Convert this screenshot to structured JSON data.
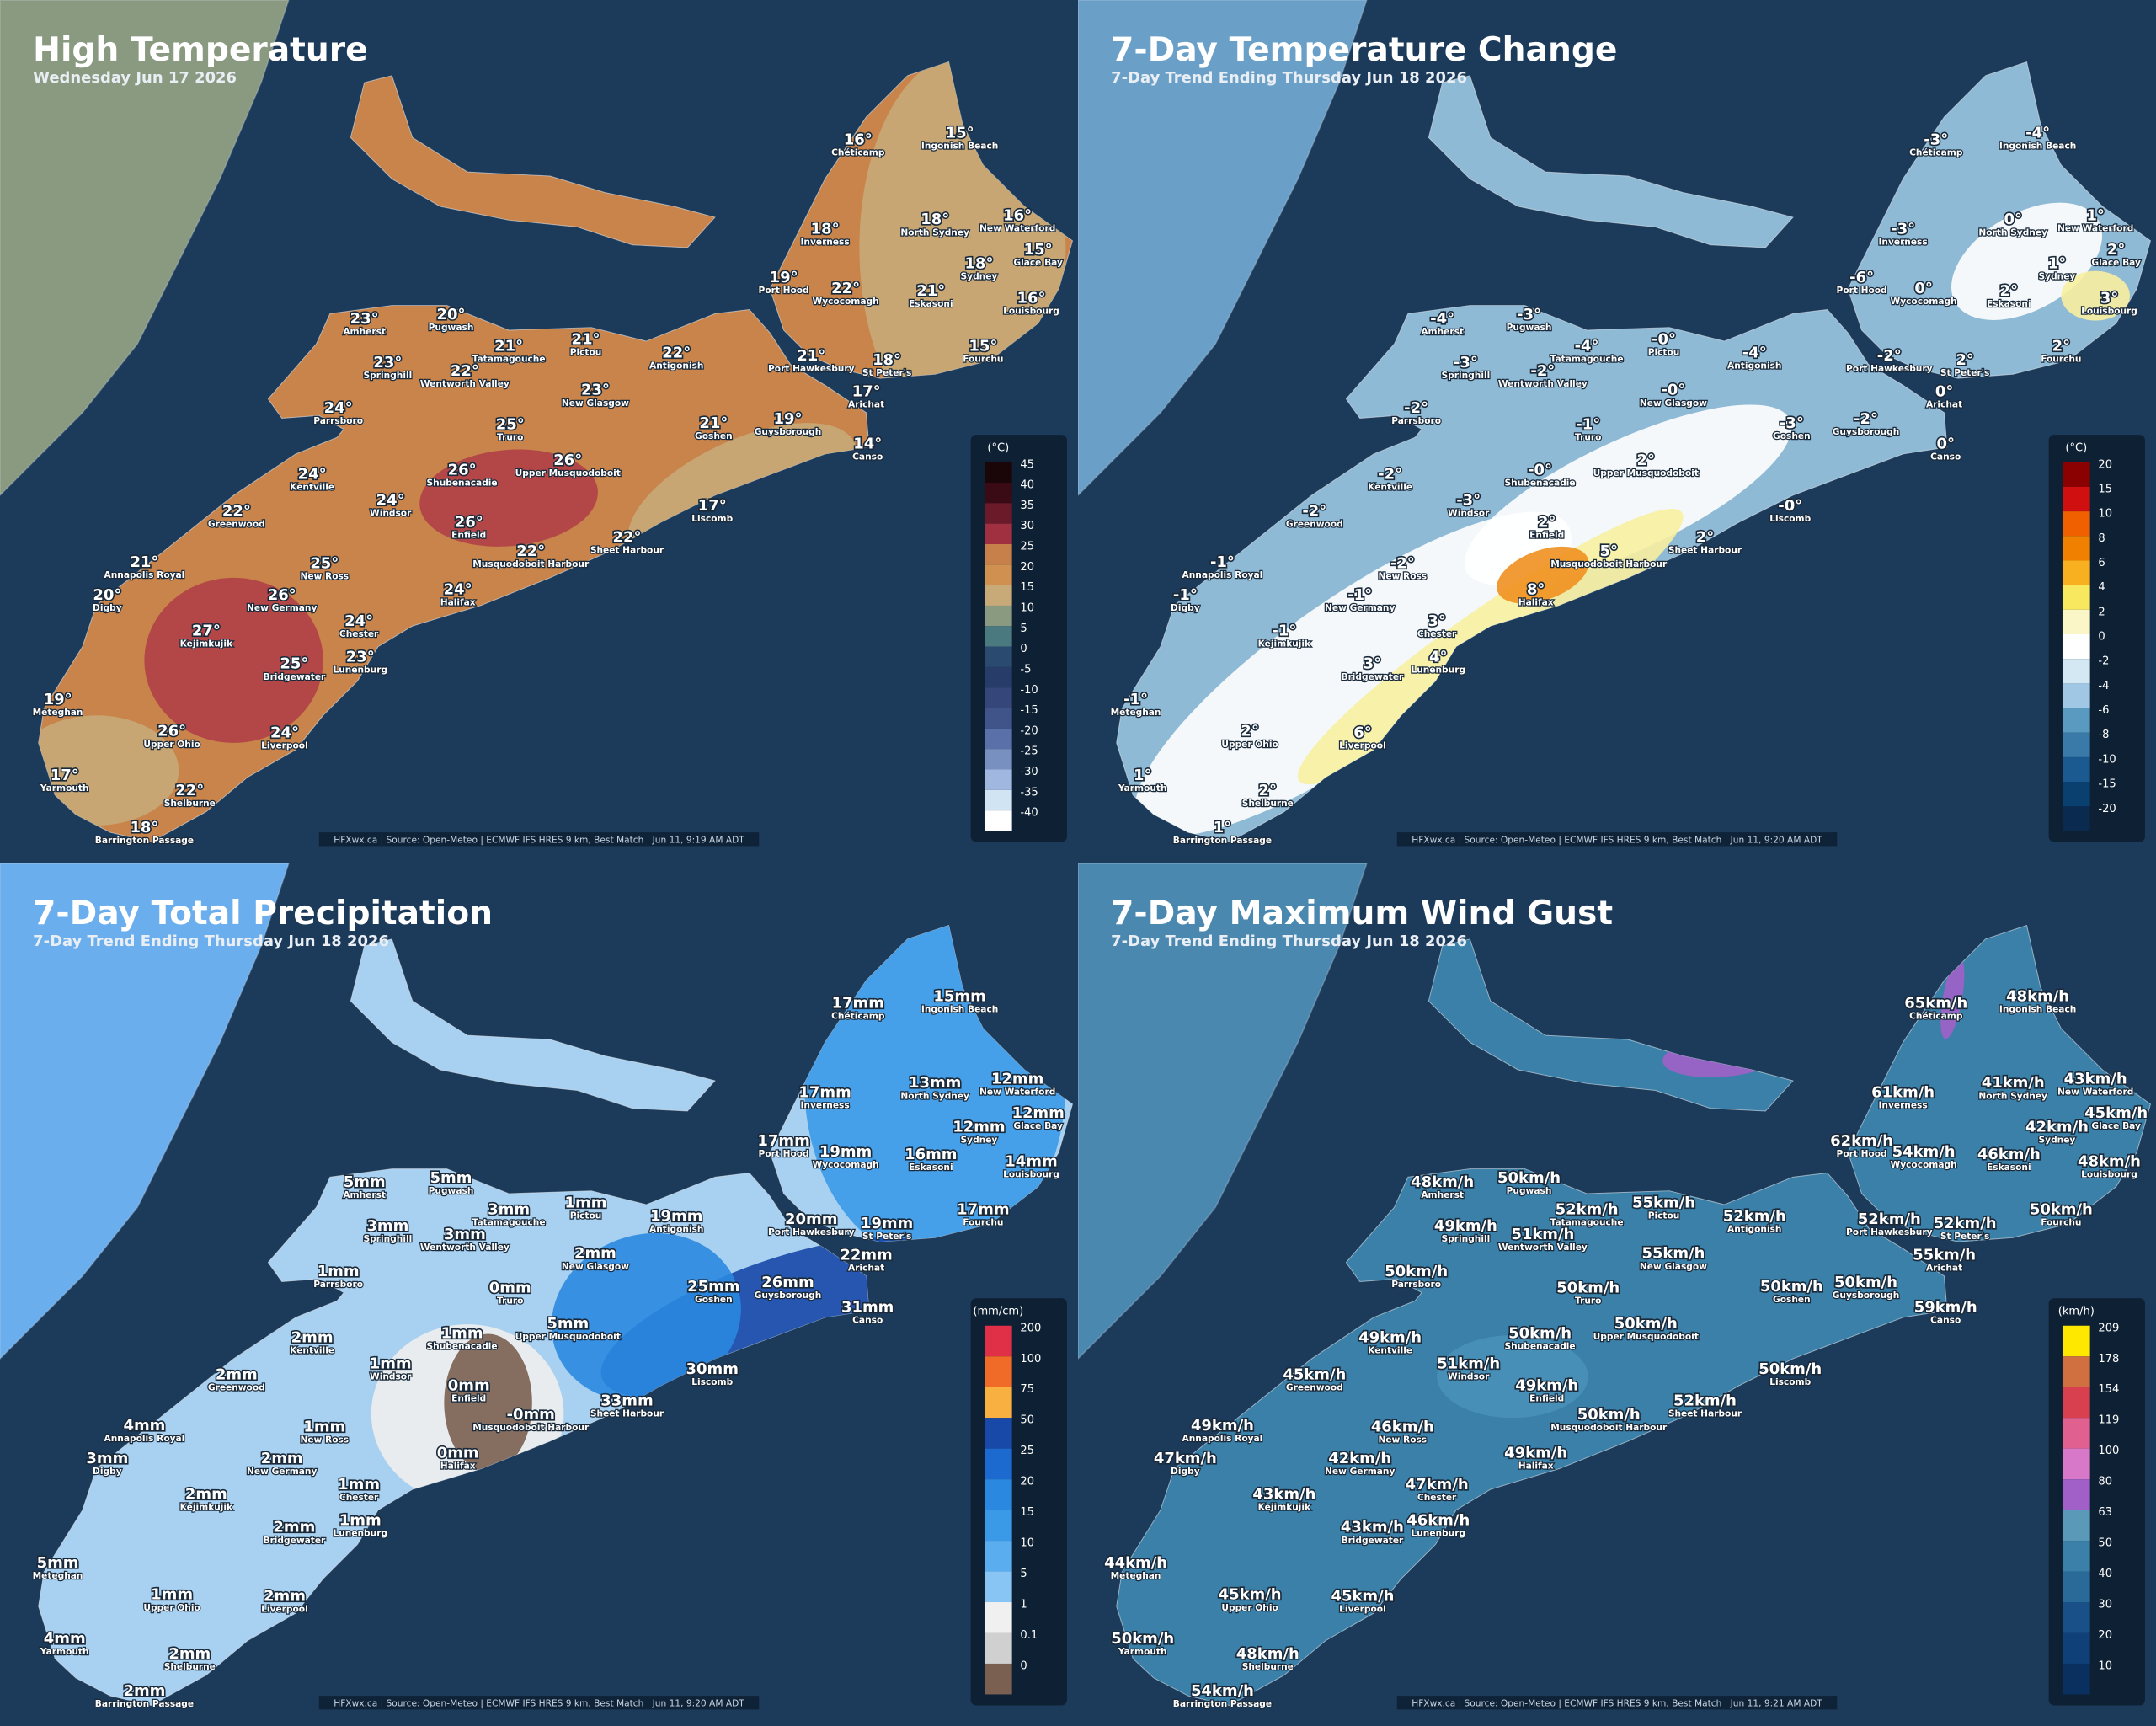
{
  "places": [
    "Chéticamp",
    "Ingonish Beach",
    "Inverness",
    "North Sydney",
    "New Waterford",
    "Glace Bay",
    "Port Hood",
    "Wycocomagh",
    "Sydney",
    "Eskasoni",
    "Louisbourg",
    "Amherst",
    "Pugwash",
    "Tatamagouche",
    "Pictou",
    "Antigonish",
    "Springhill",
    "Wentworth Valley",
    "New Glasgow",
    "Port Hawkesbury",
    "St Peter's",
    "Fourchu",
    "Arichat",
    "Parrsboro",
    "Truro",
    "Goshen",
    "Guysborough",
    "Canso",
    "Kentville",
    "Shubenacadie",
    "Upper Musquodoboit",
    "Windsor",
    "Enfield",
    "Liscomb",
    "Greenwood",
    "Musquodoboit Harbour",
    "Sheet Harbour",
    "Annapolis Royal",
    "New Ross",
    "Digby",
    "New Germany",
    "Halifax",
    "Chester",
    "Kejimkujik",
    "Lunenburg",
    "Bridgewater",
    "Meteghan",
    "Upper Ohio",
    "Liverpool",
    "Yarmouth",
    "Shelburne",
    "Barrington Passage"
  ],
  "panels": [
    {
      "title": "High Temperature",
      "subtitle": "Wednesday Jun 17 2026",
      "unit": "(°C)",
      "legend": [
        {
          "label": "45",
          "color": "#1a0508"
        },
        {
          "label": "40",
          "color": "#3a0a15"
        },
        {
          "label": "35",
          "color": "#6b1a2a"
        },
        {
          "label": "30",
          "color": "#a03040"
        },
        {
          "label": "25",
          "color": "#c8804a"
        },
        {
          "label": "20",
          "color": "#d09050"
        },
        {
          "label": "15",
          "color": "#c8aa78"
        },
        {
          "label": "10",
          "color": "#8a9a80"
        },
        {
          "label": "5",
          "color": "#4a7a80"
        },
        {
          "label": "0",
          "color": "#2a4a70"
        },
        {
          "label": "-5",
          "color": "#283c6a"
        },
        {
          "label": "-10",
          "color": "#34467a"
        },
        {
          "label": "-15",
          "color": "#40548a"
        },
        {
          "label": "-20",
          "color": "#5a70a8"
        },
        {
          "label": "-25",
          "color": "#7890c0"
        },
        {
          "label": "-30",
          "color": "#a0b8e0"
        },
        {
          "label": "-35",
          "color": "#d0e4f4"
        },
        {
          "label": "-40",
          "color": "#ffffff"
        }
      ],
      "values": [
        "16°",
        "15°",
        "18°",
        "18°",
        "16°",
        "15°",
        "19°",
        "22°",
        "18°",
        "21°",
        "16°",
        "23°",
        "20°",
        "21°",
        "21°",
        "22°",
        "23°",
        "22°",
        "23°",
        "21°",
        "18°",
        "15°",
        "17°",
        "24°",
        "25°",
        "21°",
        "19°",
        "14°",
        "24°",
        "26°",
        "26°",
        "24°",
        "26°",
        "17°",
        "22°",
        "22°",
        "22°",
        "21°",
        "25°",
        "20°",
        "26°",
        "24°",
        "24°",
        "27°",
        "23°",
        "25°",
        "19°",
        "26°",
        "24°",
        "17°",
        "22°",
        "18°"
      ],
      "source": "HFXwx.ca | Source: Open-Meteo | ECMWF IFS HRES 9 km, Best Match | Jun 11, 9:19 AM ADT"
    },
    {
      "title": "7-Day Temperature Change",
      "subtitle": "7-Day Trend Ending Thursday Jun 18 2026",
      "unit": "(°C)",
      "legend": [
        {
          "label": "20",
          "color": "#8b0000"
        },
        {
          "label": "15",
          "color": "#d01010"
        },
        {
          "label": "10",
          "color": "#f06000"
        },
        {
          "label": "8",
          "color": "#f08000"
        },
        {
          "label": "6",
          "color": "#f8b020"
        },
        {
          "label": "4",
          "color": "#f8e860"
        },
        {
          "label": "2",
          "color": "#fbf6c8"
        },
        {
          "label": "0",
          "color": "#ffffff"
        },
        {
          "label": "-2",
          "color": "#d4e8f4"
        },
        {
          "label": "-4",
          "color": "#a0c8e4"
        },
        {
          "label": "-6",
          "color": "#5a9ac0"
        },
        {
          "label": "-8",
          "color": "#3a7aa8"
        },
        {
          "label": "-10",
          "color": "#1a5a90"
        },
        {
          "label": "-15",
          "color": "#0a4070"
        },
        {
          "label": "-20",
          "color": "#0a2a50"
        }
      ],
      "values": [
        "-3°",
        "-4°",
        "-3°",
        "0°",
        "1°",
        "2°",
        "-6°",
        "0°",
        "1°",
        "2°",
        "3°",
        "-4°",
        "-3°",
        "-4°",
        "-0°",
        "-4°",
        "-3°",
        "-2°",
        "-0°",
        "-2°",
        "2°",
        "2°",
        "0°",
        "-2°",
        "-1°",
        "-3°",
        "-2°",
        "0°",
        "-2°",
        "-0°",
        "2°",
        "-3°",
        "2°",
        "-0°",
        "-2°",
        "5°",
        "2°",
        "-1°",
        "-2°",
        "-1°",
        "-1°",
        "8°",
        "3°",
        "-1°",
        "4°",
        "3°",
        "-1°",
        "2°",
        "6°",
        "1°",
        "2°",
        "1°"
      ],
      "source": "HFXwx.ca | Source: Open-Meteo | ECMWF IFS HRES 9 km, Best Match | Jun 11, 9:20 AM ADT"
    },
    {
      "title": "7-Day Total Precipitation",
      "subtitle": "7-Day Trend Ending Thursday Jun 18 2026",
      "unit": "(mm/cm)",
      "legend": [
        {
          "label": "200",
          "color": "#e03048"
        },
        {
          "label": "100",
          "color": "#f06a28"
        },
        {
          "label": "75",
          "color": "#f8b040"
        },
        {
          "label": "50",
          "color": "#1848a8"
        },
        {
          "label": "25",
          "color": "#1c6ad0"
        },
        {
          "label": "20",
          "color": "#2a88e0"
        },
        {
          "label": "15",
          "color": "#3a9ae8"
        },
        {
          "label": "10",
          "color": "#5aaef0"
        },
        {
          "label": "5",
          "color": "#88c4f4"
        },
        {
          "label": "1",
          "color": "#f0f0f0"
        },
        {
          "label": "0.1",
          "color": "#d0d0d0"
        },
        {
          "label": "0",
          "color": "#7a6050"
        }
      ],
      "values": [
        "17mm",
        "15mm",
        "17mm",
        "13mm",
        "12mm",
        "12mm",
        "17mm",
        "19mm",
        "12mm",
        "16mm",
        "14mm",
        "5mm",
        "5mm",
        "3mm",
        "1mm",
        "19mm",
        "3mm",
        "3mm",
        "2mm",
        "20mm",
        "19mm",
        "17mm",
        "22mm",
        "1mm",
        "0mm",
        "25mm",
        "26mm",
        "31mm",
        "2mm",
        "1mm",
        "5mm",
        "1mm",
        "0mm",
        "30mm",
        "2mm",
        "-0mm",
        "33mm",
        "4mm",
        "1mm",
        "3mm",
        "2mm",
        "0mm",
        "1mm",
        "2mm",
        "1mm",
        "2mm",
        "5mm",
        "1mm",
        "2mm",
        "4mm",
        "2mm",
        "2mm"
      ],
      "source": "HFXwx.ca | Source: Open-Meteo | ECMWF IFS HRES 9 km, Best Match | Jun 11, 9:20 AM ADT"
    },
    {
      "title": "7-Day Maximum Wind Gust",
      "subtitle": "7-Day Trend Ending Thursday Jun 18 2026",
      "unit": "(km/h)",
      "legend": [
        {
          "label": "209",
          "color": "#ffe800"
        },
        {
          "label": "178",
          "color": "#d07040"
        },
        {
          "label": "154",
          "color": "#d84050"
        },
        {
          "label": "119",
          "color": "#e06090"
        },
        {
          "label": "100",
          "color": "#d878c8"
        },
        {
          "label": "80",
          "color": "#a060c8"
        },
        {
          "label": "63",
          "color": "#5a9ab8"
        },
        {
          "label": "50",
          "color": "#3a80a8"
        },
        {
          "label": "40",
          "color": "#2a6a98"
        },
        {
          "label": "30",
          "color": "#1a5088"
        },
        {
          "label": "20",
          "color": "#104078"
        },
        {
          "label": "10",
          "color": "#0a3060"
        }
      ],
      "values": [
        "65km/h",
        "48km/h",
        "61km/h",
        "41km/h",
        "43km/h",
        "45km/h",
        "62km/h",
        "54km/h",
        "42km/h",
        "46km/h",
        "48km/h",
        "48km/h",
        "50km/h",
        "52km/h",
        "55km/h",
        "52km/h",
        "49km/h",
        "51km/h",
        "55km/h",
        "52km/h",
        "52km/h",
        "50km/h",
        "55km/h",
        "50km/h",
        "50km/h",
        "50km/h",
        "50km/h",
        "59km/h",
        "49km/h",
        "50km/h",
        "50km/h",
        "51km/h",
        "49km/h",
        "50km/h",
        "45km/h",
        "50km/h",
        "52km/h",
        "49km/h",
        "46km/h",
        "47km/h",
        "42km/h",
        "49km/h",
        "47km/h",
        "43km/h",
        "46km/h",
        "43km/h",
        "44km/h",
        "45km/h",
        "45km/h",
        "50km/h",
        "48km/h",
        "54km/h"
      ],
      "source": "HFXwx.ca | Source: Open-Meteo | ECMWF IFS HRES 9 km, Best Match | Jun 11, 9:21 AM ADT"
    }
  ]
}
